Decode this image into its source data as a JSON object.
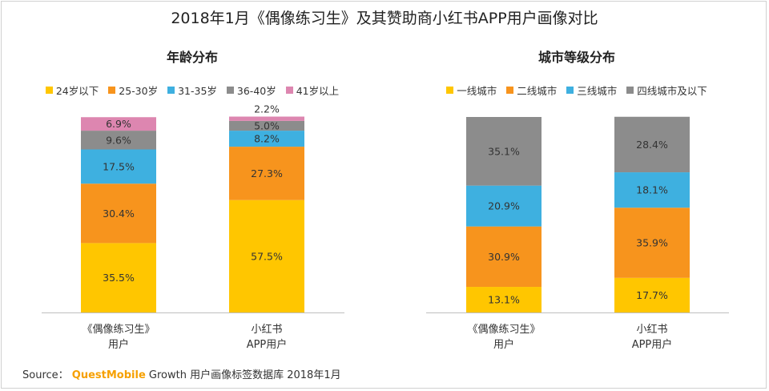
{
  "title": "2018年1月《偶像练习生》及其赞助商小红书APP用户画像对比",
  "source": {
    "prefix": "Source：",
    "brand_part1": "Quest",
    "brand_part2": "Mobile",
    "suffix": "Growth 用户画像标签数据库 2018年1月"
  },
  "chart_data": [
    {
      "type": "bar",
      "stacked": true,
      "title": "年龄分布",
      "categories": [
        [
          "《偶像练习生》",
          "用户"
        ],
        [
          "小红书",
          "APP用户"
        ]
      ],
      "series": [
        {
          "name": "24岁以下",
          "color": "#ffc600",
          "values": [
            35.5,
            57.5
          ]
        },
        {
          "name": "25-30岁",
          "color": "#f7941d",
          "values": [
            30.4,
            27.3
          ]
        },
        {
          "name": "31-35岁",
          "color": "#3eb0e0",
          "values": [
            17.5,
            8.2
          ]
        },
        {
          "name": "36-40岁",
          "color": "#8c8c8c",
          "values": [
            9.6,
            5.0
          ]
        },
        {
          "name": "41岁以上",
          "color": "#dd86b0",
          "values": [
            6.9,
            2.2
          ]
        }
      ],
      "value_suffix": "%",
      "ylim": [
        0,
        100
      ]
    },
    {
      "type": "bar",
      "stacked": true,
      "title": "城市等级分布",
      "categories": [
        [
          "《偶像练习生》",
          "用户"
        ],
        [
          "小红书",
          "APP用户"
        ]
      ],
      "series": [
        {
          "name": "一线城市",
          "color": "#ffc600",
          "values": [
            13.1,
            17.7
          ]
        },
        {
          "name": "二线城市",
          "color": "#f7941d",
          "values": [
            30.9,
            35.9
          ]
        },
        {
          "name": "三线城市",
          "color": "#3eb0e0",
          "values": [
            20.9,
            18.1
          ]
        },
        {
          "name": "四线城市及以下",
          "color": "#8c8c8c",
          "values": [
            35.1,
            28.4
          ]
        }
      ],
      "value_suffix": "%",
      "ylim": [
        0,
        100
      ]
    }
  ]
}
